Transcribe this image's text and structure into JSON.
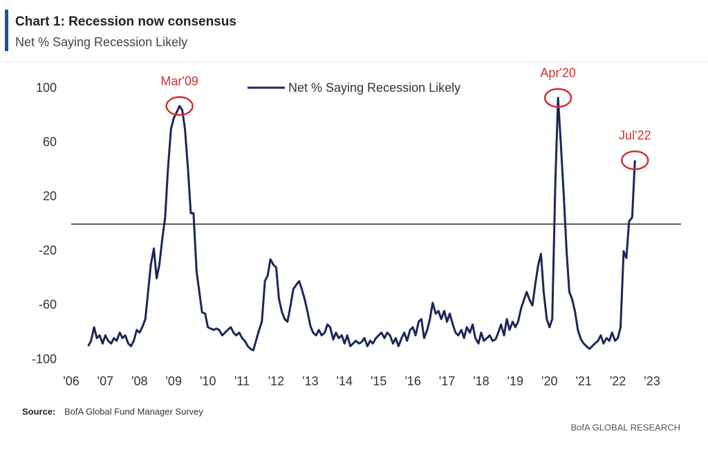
{
  "chart_data": {
    "type": "line",
    "title": "Chart 1: Recession now consensus",
    "subtitle": "Net % Saying Recession Likely",
    "source_label": "Source:",
    "source": "BofA Global Fund Manager Survey",
    "credit": "BofA GLOBAL RESEARCH",
    "xlim": [
      2006,
      2023.85
    ],
    "ylim": [
      -100,
      100
    ],
    "xticks": [
      {
        "value": 2006,
        "label": "'06"
      },
      {
        "value": 2007,
        "label": "'07"
      },
      {
        "value": 2008,
        "label": "'08"
      },
      {
        "value": 2009,
        "label": "'09"
      },
      {
        "value": 2010,
        "label": "'10"
      },
      {
        "value": 2011,
        "label": "'11"
      },
      {
        "value": 2012,
        "label": "'12"
      },
      {
        "value": 2013,
        "label": "'13"
      },
      {
        "value": 2014,
        "label": "'14"
      },
      {
        "value": 2015,
        "label": "'15"
      },
      {
        "value": 2016,
        "label": "'16"
      },
      {
        "value": 2017,
        "label": "'17"
      },
      {
        "value": 2018,
        "label": "'18"
      },
      {
        "value": 2019,
        "label": "'19"
      },
      {
        "value": 2020,
        "label": "'20"
      },
      {
        "value": 2021,
        "label": "'21"
      },
      {
        "value": 2022,
        "label": "'22"
      },
      {
        "value": 2023,
        "label": "'23"
      }
    ],
    "yticks": [
      100,
      60,
      20,
      -20,
      -60,
      -100
    ],
    "grid": false,
    "reference_line": 0,
    "x": [
      2006.5,
      2006.58,
      2006.67,
      2006.75,
      2006.83,
      2006.92,
      2007,
      2007.08,
      2007.17,
      2007.25,
      2007.33,
      2007.42,
      2007.5,
      2007.58,
      2007.67,
      2007.75,
      2007.83,
      2007.92,
      2008,
      2008.08,
      2008.17,
      2008.25,
      2008.33,
      2008.42,
      2008.5,
      2008.58,
      2008.67,
      2008.75,
      2008.83,
      2008.92,
      2009,
      2009.08,
      2009.17,
      2009.25,
      2009.33,
      2009.42,
      2009.5,
      2009.58,
      2009.67,
      2009.75,
      2009.83,
      2009.92,
      2010,
      2010.08,
      2010.17,
      2010.25,
      2010.33,
      2010.42,
      2010.5,
      2010.58,
      2010.67,
      2010.75,
      2010.83,
      2010.92,
      2011,
      2011.08,
      2011.17,
      2011.25,
      2011.33,
      2011.42,
      2011.5,
      2011.58,
      2011.67,
      2011.75,
      2011.83,
      2011.92,
      2012,
      2012.08,
      2012.17,
      2012.25,
      2012.33,
      2012.42,
      2012.5,
      2012.58,
      2012.67,
      2012.75,
      2012.83,
      2012.92,
      2013,
      2013.08,
      2013.17,
      2013.25,
      2013.33,
      2013.42,
      2013.5,
      2013.58,
      2013.67,
      2013.75,
      2013.83,
      2013.92,
      2014,
      2014.08,
      2014.17,
      2014.25,
      2014.33,
      2014.42,
      2014.5,
      2014.58,
      2014.67,
      2014.75,
      2014.83,
      2014.92,
      2015,
      2015.08,
      2015.17,
      2015.25,
      2015.33,
      2015.42,
      2015.5,
      2015.58,
      2015.67,
      2015.75,
      2015.83,
      2015.92,
      2016,
      2016.08,
      2016.17,
      2016.25,
      2016.33,
      2016.42,
      2016.5,
      2016.58,
      2016.67,
      2016.75,
      2016.83,
      2016.92,
      2017,
      2017.08,
      2017.17,
      2017.25,
      2017.33,
      2017.42,
      2017.5,
      2017.58,
      2017.67,
      2017.75,
      2017.83,
      2017.92,
      2018,
      2018.08,
      2018.17,
      2018.25,
      2018.33,
      2018.42,
      2018.5,
      2018.58,
      2018.67,
      2018.75,
      2018.83,
      2018.92,
      2019,
      2019.08,
      2019.17,
      2019.25,
      2019.33,
      2019.42,
      2019.5,
      2019.58,
      2019.67,
      2019.75,
      2019.83,
      2019.92,
      2020,
      2020.08,
      2020.17,
      2020.25,
      2020.33,
      2020.42,
      2020.5,
      2020.58,
      2020.67,
      2020.75,
      2020.83,
      2020.92,
      2021,
      2021.08,
      2021.17,
      2021.25,
      2021.33,
      2021.42,
      2021.5,
      2021.58,
      2021.67,
      2021.75,
      2021.83,
      2021.92,
      2022,
      2022.08,
      2022.17,
      2022.25,
      2022.33,
      2022.42,
      2022.5
    ],
    "series": [
      {
        "name": "Net % Saying Recession Likely",
        "color": "#1b2756",
        "values": [
          -90,
          -86,
          -76,
          -84,
          -82,
          -88,
          -82,
          -86,
          -88,
          -84,
          -86,
          -80,
          -84,
          -82,
          -88,
          -90,
          -86,
          -78,
          -80,
          -76,
          -70,
          -50,
          -30,
          -18,
          -40,
          -30,
          -10,
          5,
          40,
          70,
          78,
          82,
          87,
          84,
          70,
          40,
          8,
          8,
          -35,
          -50,
          -65,
          -66,
          -76,
          -77,
          -78,
          -77,
          -78,
          -82,
          -80,
          -78,
          -76,
          -80,
          -82,
          -80,
          -84,
          -86,
          -90,
          -92,
          -93,
          -85,
          -78,
          -72,
          -42,
          -38,
          -26,
          -30,
          -32,
          -55,
          -65,
          -70,
          -72,
          -60,
          -48,
          -45,
          -42,
          -48,
          -55,
          -65,
          -75,
          -80,
          -82,
          -78,
          -82,
          -80,
          -74,
          -76,
          -85,
          -80,
          -84,
          -82,
          -88,
          -82,
          -90,
          -88,
          -86,
          -88,
          -87,
          -84,
          -90,
          -86,
          -88,
          -84,
          -82,
          -80,
          -84,
          -80,
          -82,
          -88,
          -84,
          -90,
          -84,
          -80,
          -86,
          -78,
          -76,
          -82,
          -72,
          -70,
          -84,
          -78,
          -70,
          -58,
          -66,
          -64,
          -70,
          -64,
          -72,
          -66,
          -74,
          -80,
          -82,
          -78,
          -84,
          -76,
          -80,
          -74,
          -84,
          -88,
          -80,
          -86,
          -84,
          -82,
          -86,
          -85,
          -80,
          -74,
          -82,
          -70,
          -78,
          -72,
          -76,
          -72,
          -62,
          -56,
          -50,
          -56,
          -60,
          -45,
          -30,
          -22,
          -50,
          -70,
          -76,
          -70,
          30,
          93,
          60,
          20,
          -20,
          -50,
          -56,
          -65,
          -78,
          -85,
          -88,
          -90,
          -92,
          -90,
          -88,
          -86,
          -82,
          -88,
          -84,
          -86,
          -80,
          -86,
          -84,
          -76,
          -20,
          -25,
          2,
          5,
          47
        ]
      }
    ],
    "annotation_color": "#d0312d",
    "annotations": [
      {
        "text": "Mar'09",
        "x": 2009.17,
        "y": 87
      },
      {
        "text": "Apr'20",
        "x": 2020.25,
        "y": 93
      },
      {
        "text": "Jul'22",
        "x": 2022.5,
        "y": 47
      }
    ]
  }
}
